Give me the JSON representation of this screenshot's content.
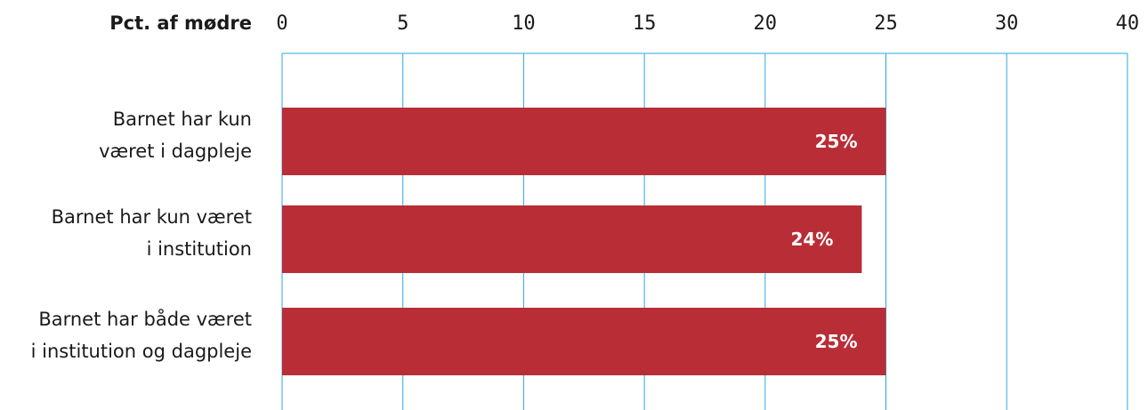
{
  "chart_data": {
    "type": "bar",
    "orientation": "horizontal",
    "axis_title": "Pct. af mødre",
    "x_ticks": [
      "0",
      "5",
      "10",
      "15",
      "20",
      "25",
      "30",
      "40"
    ],
    "categories": [
      [
        "Barnet har kun",
        "været i dagpleje"
      ],
      [
        "Barnet har kun været",
        "i institution"
      ],
      [
        "Barnet har både været",
        "i institution og dagpleje"
      ]
    ],
    "values": [
      25,
      24,
      25
    ],
    "data_labels": [
      "25%",
      "24%",
      "25%"
    ],
    "grid": true,
    "colors": {
      "bar": "#b92d36",
      "grid": "#2aa8e0",
      "text": "#1a1a1a",
      "label": "#ffffff"
    }
  }
}
